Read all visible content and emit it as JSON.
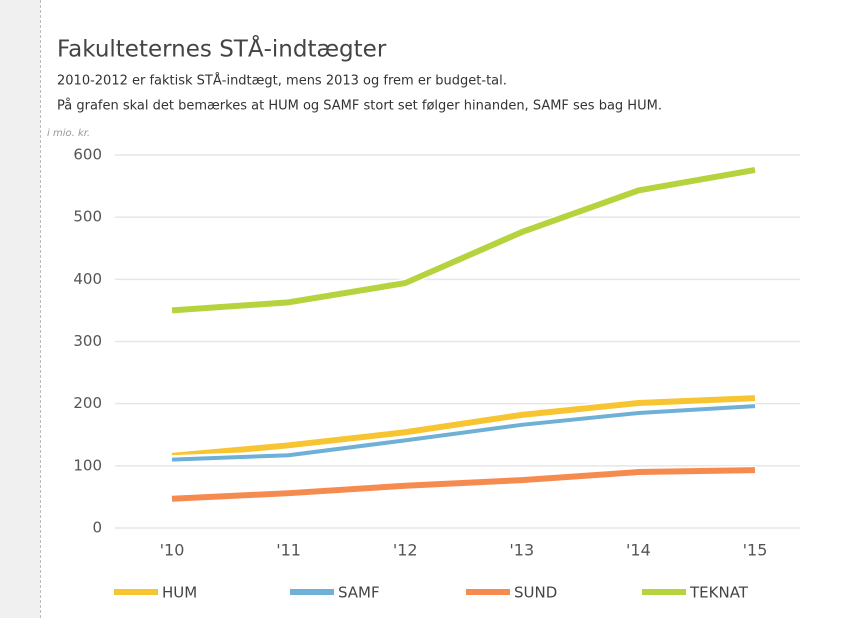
{
  "chart_data": {
    "type": "line",
    "title": "Fakulteternes STÅ-indtægter",
    "subtitle": [
      "2010-2012 er faktisk STÅ-indtægt, mens 2013 og frem er budget-tal.",
      "På grafen skal det bemærkes at HUM og SAMF stort set følger hinanden, SAMF ses bag HUM."
    ],
    "y_axis_label": "i mio. kr.",
    "categories": [
      "'10",
      "'11",
      "'12",
      "'13",
      "'14",
      "'15"
    ],
    "series": [
      {
        "name": "HUM",
        "color": "#f7c531",
        "values": [
          116,
          133,
          154,
          182,
          201,
          209
        ]
      },
      {
        "name": "SAMF",
        "color": "#6fb0d6",
        "values": [
          110,
          117,
          141,
          166,
          185,
          196
        ]
      },
      {
        "name": "SUND",
        "color": "#f68b4f",
        "values": [
          47,
          56,
          68,
          77,
          90,
          93
        ]
      },
      {
        "name": "TEKNAT",
        "color": "#b5d33d",
        "values": [
          350,
          363,
          394,
          476,
          543,
          576
        ]
      }
    ],
    "ylim": [
      0,
      600
    ],
    "yticks": [
      0,
      100,
      200,
      300,
      400,
      500,
      600
    ],
    "grid": true,
    "legend": "bottom"
  }
}
